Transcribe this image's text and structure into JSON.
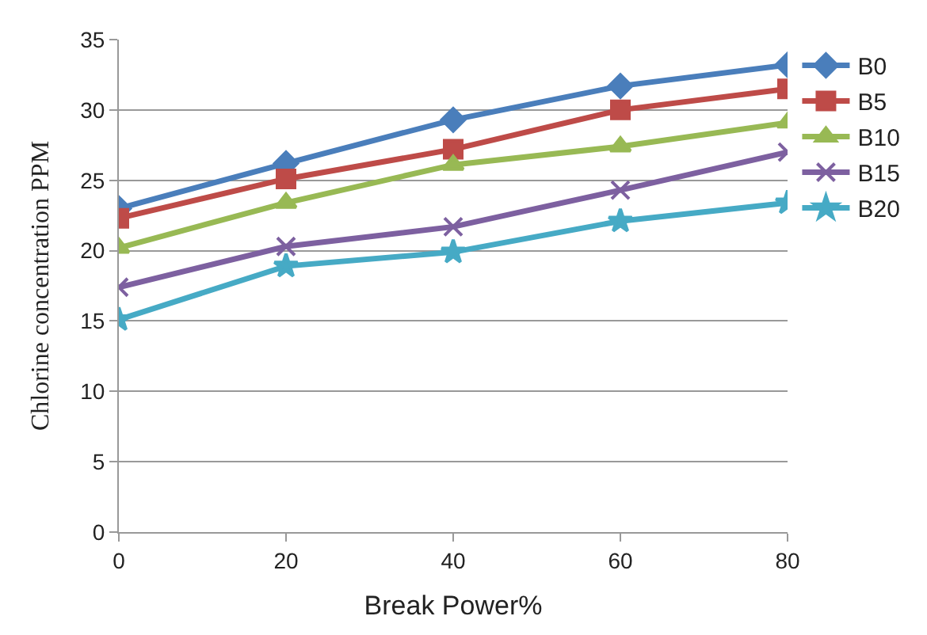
{
  "chart_data": {
    "type": "line",
    "xlabel": "Break Power%",
    "ylabel": "Chlorine concentration PPM",
    "x": [
      0,
      20,
      40,
      60,
      80
    ],
    "xlim": [
      0,
      80
    ],
    "xticks": [
      0,
      20,
      40,
      60,
      80
    ],
    "ylim": [
      0,
      35
    ],
    "yticks": [
      0,
      5,
      10,
      15,
      20,
      25,
      30,
      35
    ],
    "grid": "y",
    "legend": "top right",
    "series": [
      {
        "name": "B0",
        "color": "#4a7ebb",
        "marker": "diamond",
        "values": [
          23.0,
          26.2,
          29.3,
          31.7,
          33.2
        ]
      },
      {
        "name": "B5",
        "color": "#be4b48",
        "marker": "square",
        "values": [
          22.3,
          25.1,
          27.2,
          30.0,
          31.5
        ]
      },
      {
        "name": "B10",
        "color": "#98b954",
        "marker": "triangle",
        "values": [
          20.2,
          23.4,
          26.1,
          27.4,
          29.1
        ]
      },
      {
        "name": "B15",
        "color": "#7d60a0",
        "marker": "cross",
        "values": [
          17.4,
          20.3,
          21.7,
          24.3,
          27.0
        ]
      },
      {
        "name": "B20",
        "color": "#46aac5",
        "marker": "star",
        "values": [
          15.1,
          18.9,
          19.9,
          22.1,
          23.4
        ]
      }
    ]
  }
}
